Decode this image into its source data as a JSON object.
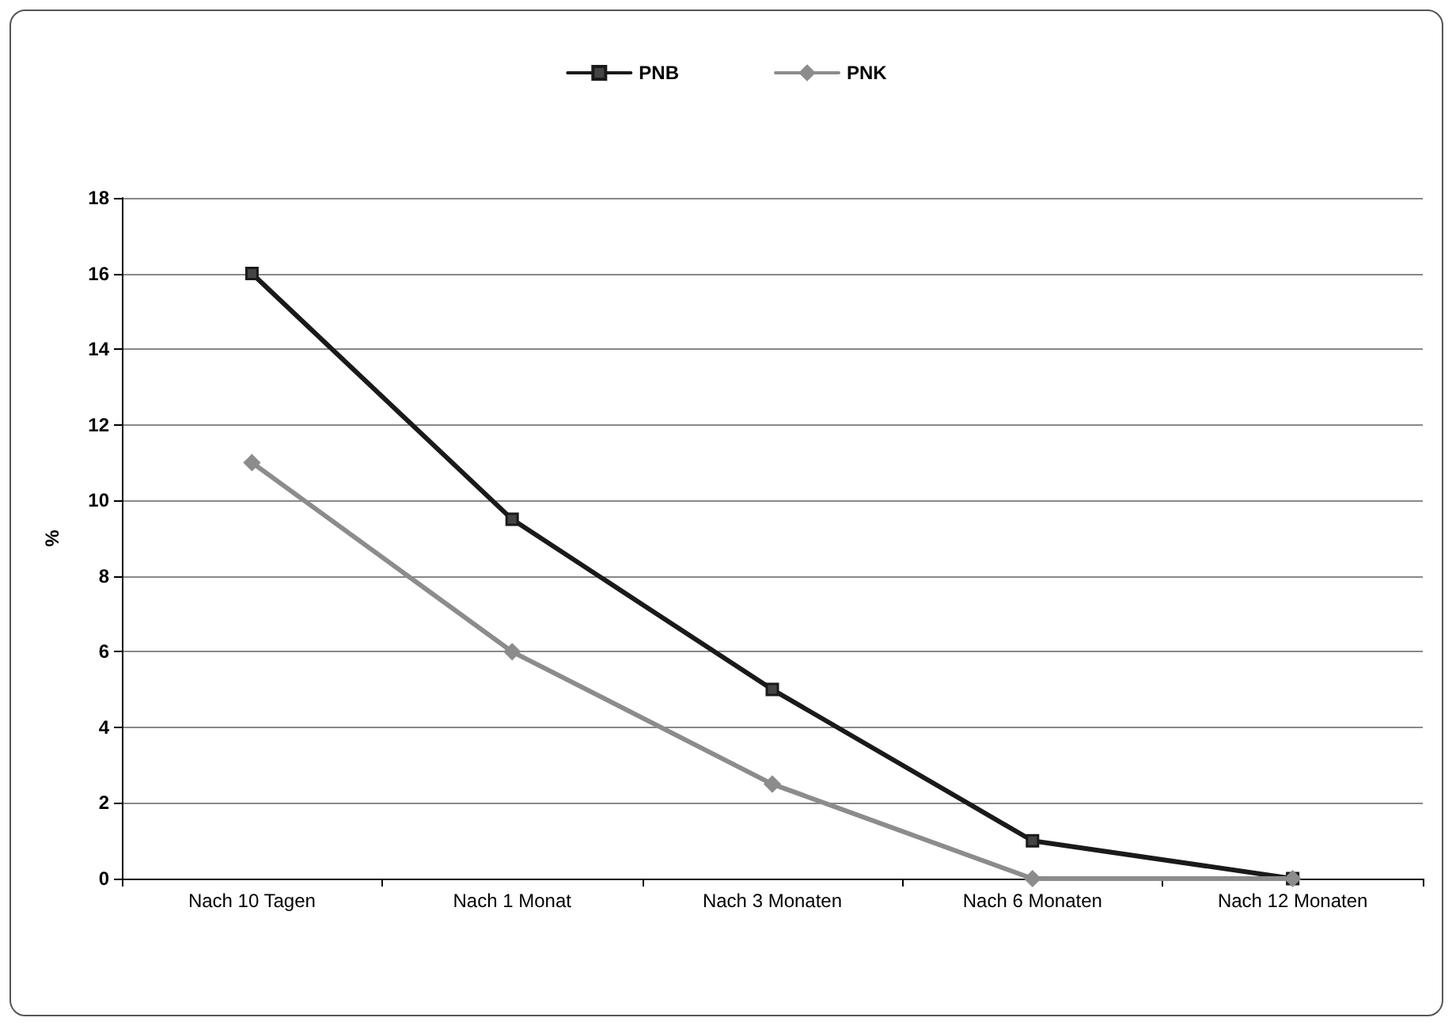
{
  "chart_data": {
    "type": "line",
    "ylabel": "%",
    "categories": [
      "Nach 10 Tagen",
      "Nach 1 Monat",
      "Nach 3 Monaten",
      "Nach 6 Monaten",
      "Nach 12 Monaten"
    ],
    "series": [
      {
        "name": "PNB",
        "color": "#1a1a1a",
        "marker": "square",
        "values": [
          16,
          9.5,
          5,
          1,
          0
        ]
      },
      {
        "name": "PNK",
        "color": "#8c8c8c",
        "marker": "diamond",
        "values": [
          11,
          6,
          2.5,
          0,
          0
        ]
      }
    ],
    "ylim": [
      0,
      18
    ],
    "yticks": [
      0,
      2,
      4,
      6,
      8,
      10,
      12,
      14,
      16,
      18
    ],
    "grid": "y",
    "legend": "top",
    "line_style": "solid"
  }
}
